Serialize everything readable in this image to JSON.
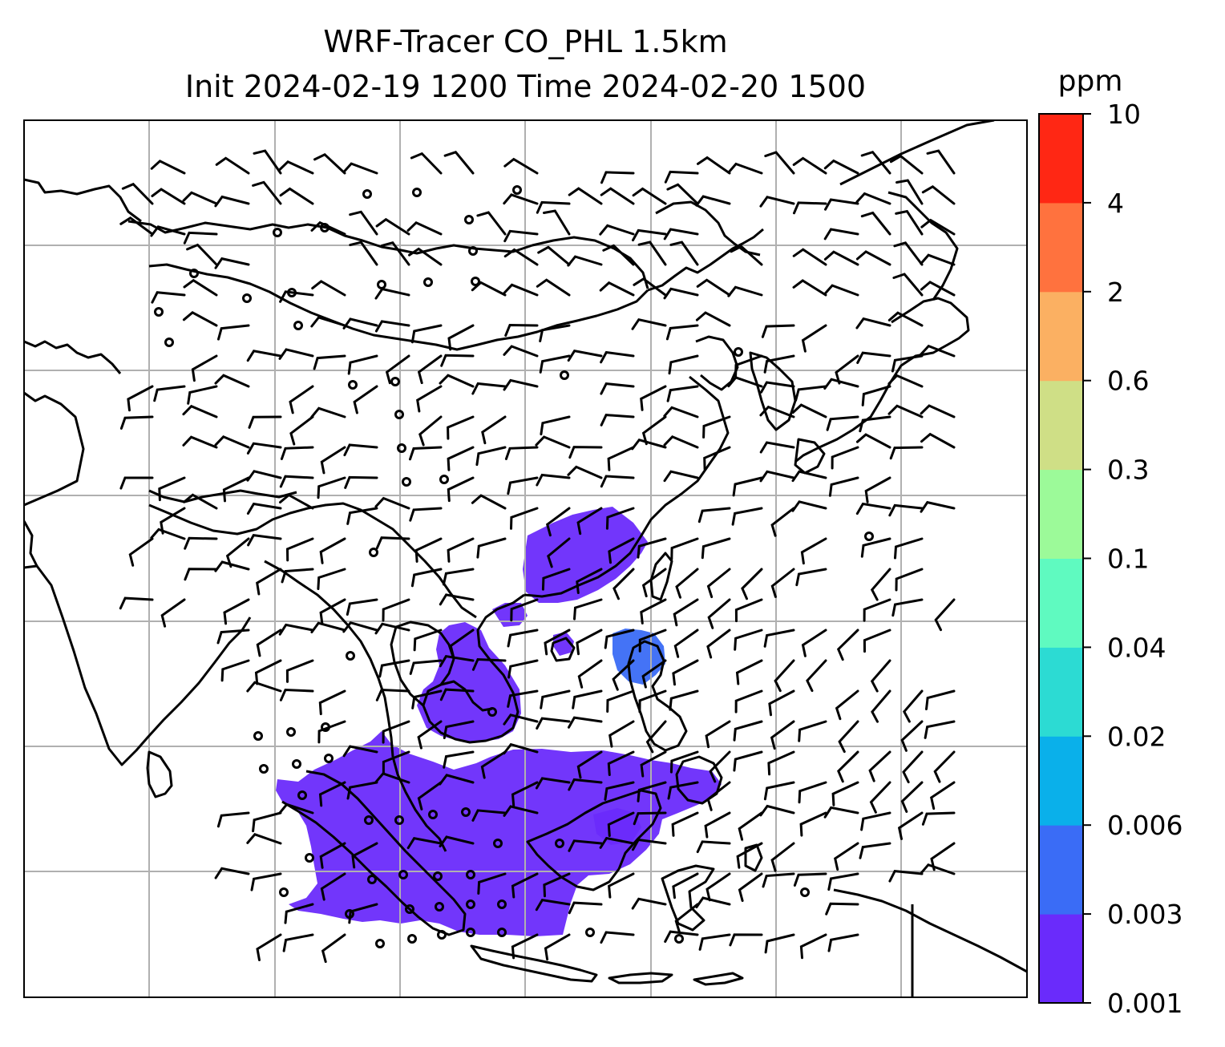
{
  "title_line1": "WRF-Tracer CO_PHL 1.5km",
  "title_line2": "Init 2024-02-19 1200 Time 2024-02-20 1500",
  "colorbar": {
    "unit": "ppm",
    "levels": [
      "0.001",
      "0.003",
      "0.006",
      "0.02",
      "0.04",
      "0.1",
      "0.3",
      "0.6",
      "2",
      "4",
      "10"
    ],
    "colors": [
      "#6a2bfb",
      "#3a6cf6",
      "#0ab0ea",
      "#2cdbd3",
      "#5ffac0",
      "#9cfa99",
      "#cfdf86",
      "#fbb062",
      "#ff723e",
      "#ff2714"
    ]
  },
  "map": {
    "gridlines": true,
    "border_color": "#000000",
    "grid_color": "#b0b0b0"
  }
}
